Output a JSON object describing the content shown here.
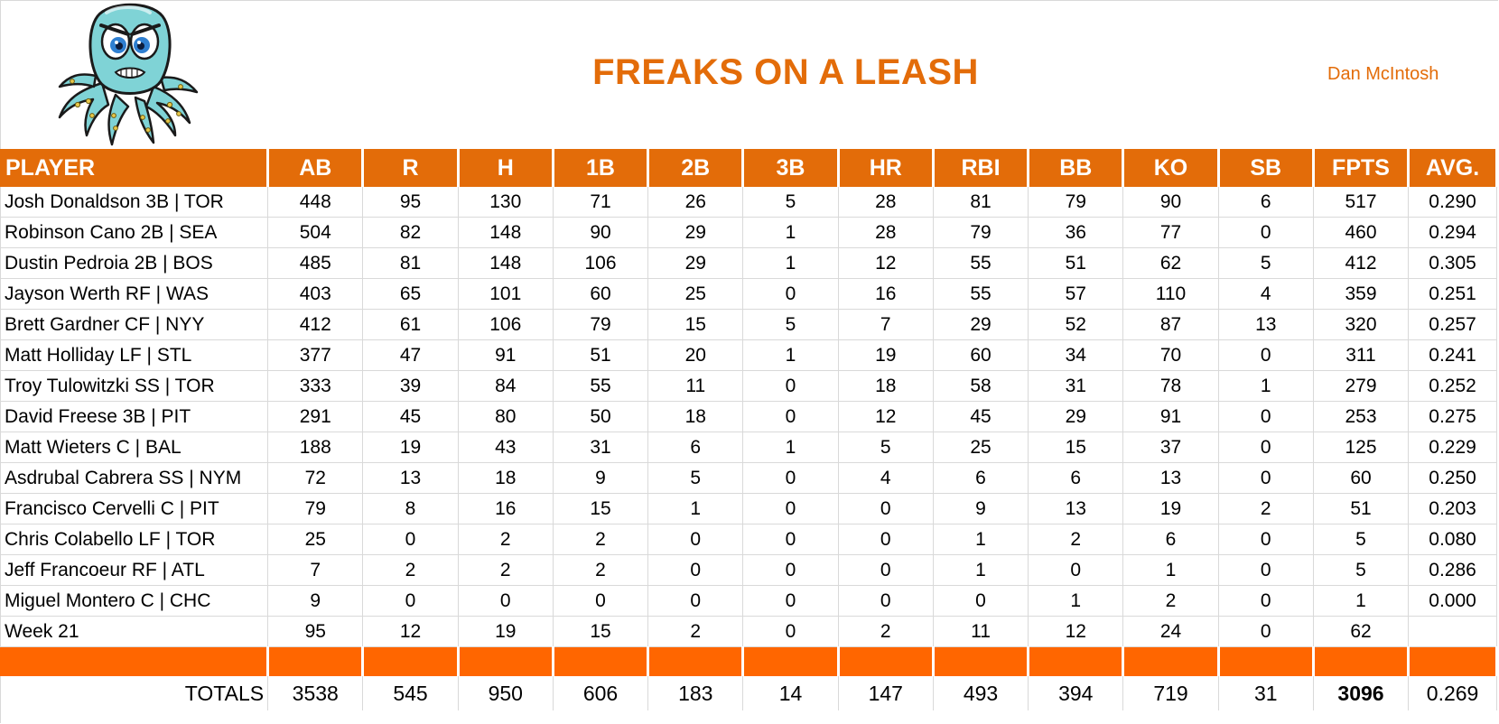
{
  "team": {
    "name": "FREAKS ON A LEASH",
    "owner": "Dan McIntosh"
  },
  "logo": {
    "icon": "octopus-mascot-icon",
    "colors": {
      "body": "#7fd3d6",
      "eyes": "#2f7fd1",
      "outline": "#1a1a1a"
    }
  },
  "colors": {
    "header": "#e36c09",
    "spacer": "#ff6600",
    "title": "#e36c09"
  },
  "columns": [
    "PLAYER",
    "AB",
    "R",
    "H",
    "1B",
    "2B",
    "3B",
    "HR",
    "RBI",
    "BB",
    "KO",
    "SB",
    "FPTS",
    "AVG."
  ],
  "rows": [
    [
      "Josh Donaldson 3B | TOR",
      "448",
      "95",
      "130",
      "71",
      "26",
      "5",
      "28",
      "81",
      "79",
      "90",
      "6",
      "517",
      "0.290"
    ],
    [
      "Robinson Cano 2B | SEA",
      "504",
      "82",
      "148",
      "90",
      "29",
      "1",
      "28",
      "79",
      "36",
      "77",
      "0",
      "460",
      "0.294"
    ],
    [
      "Dustin Pedroia 2B | BOS",
      "485",
      "81",
      "148",
      "106",
      "29",
      "1",
      "12",
      "55",
      "51",
      "62",
      "5",
      "412",
      "0.305"
    ],
    [
      "Jayson Werth RF | WAS",
      "403",
      "65",
      "101",
      "60",
      "25",
      "0",
      "16",
      "55",
      "57",
      "110",
      "4",
      "359",
      "0.251"
    ],
    [
      "Brett Gardner CF | NYY",
      "412",
      "61",
      "106",
      "79",
      "15",
      "5",
      "7",
      "29",
      "52",
      "87",
      "13",
      "320",
      "0.257"
    ],
    [
      "Matt Holliday LF | STL",
      "377",
      "47",
      "91",
      "51",
      "20",
      "1",
      "19",
      "60",
      "34",
      "70",
      "0",
      "311",
      "0.241"
    ],
    [
      "Troy Tulowitzki SS | TOR",
      "333",
      "39",
      "84",
      "55",
      "11",
      "0",
      "18",
      "58",
      "31",
      "78",
      "1",
      "279",
      "0.252"
    ],
    [
      "David Freese 3B | PIT",
      "291",
      "45",
      "80",
      "50",
      "18",
      "0",
      "12",
      "45",
      "29",
      "91",
      "0",
      "253",
      "0.275"
    ],
    [
      "Matt Wieters C | BAL",
      "188",
      "19",
      "43",
      "31",
      "6",
      "1",
      "5",
      "25",
      "15",
      "37",
      "0",
      "125",
      "0.229"
    ],
    [
      "Asdrubal Cabrera SS | NYM",
      "72",
      "13",
      "18",
      "9",
      "5",
      "0",
      "4",
      "6",
      "6",
      "13",
      "0",
      "60",
      "0.250"
    ],
    [
      "Francisco Cervelli C | PIT",
      "79",
      "8",
      "16",
      "15",
      "1",
      "0",
      "0",
      "9",
      "13",
      "19",
      "2",
      "51",
      "0.203"
    ],
    [
      "Chris Colabello LF | TOR",
      "25",
      "0",
      "2",
      "2",
      "0",
      "0",
      "0",
      "1",
      "2",
      "6",
      "0",
      "5",
      "0.080"
    ],
    [
      "Jeff Francoeur RF | ATL",
      "7",
      "2",
      "2",
      "2",
      "0",
      "0",
      "0",
      "1",
      "0",
      "1",
      "0",
      "5",
      "0.286"
    ],
    [
      "Miguel Montero C | CHC",
      "9",
      "0",
      "0",
      "0",
      "0",
      "0",
      "0",
      "0",
      "1",
      "2",
      "0",
      "1",
      "0.000"
    ],
    [
      "Week 21",
      "95",
      "12",
      "19",
      "15",
      "2",
      "0",
      "2",
      "11",
      "12",
      "24",
      "0",
      "62",
      ""
    ]
  ],
  "totals": [
    "TOTALS",
    "3538",
    "545",
    "950",
    "606",
    "183",
    "14",
    "147",
    "493",
    "394",
    "719",
    "31",
    "3096",
    "0.269"
  ]
}
